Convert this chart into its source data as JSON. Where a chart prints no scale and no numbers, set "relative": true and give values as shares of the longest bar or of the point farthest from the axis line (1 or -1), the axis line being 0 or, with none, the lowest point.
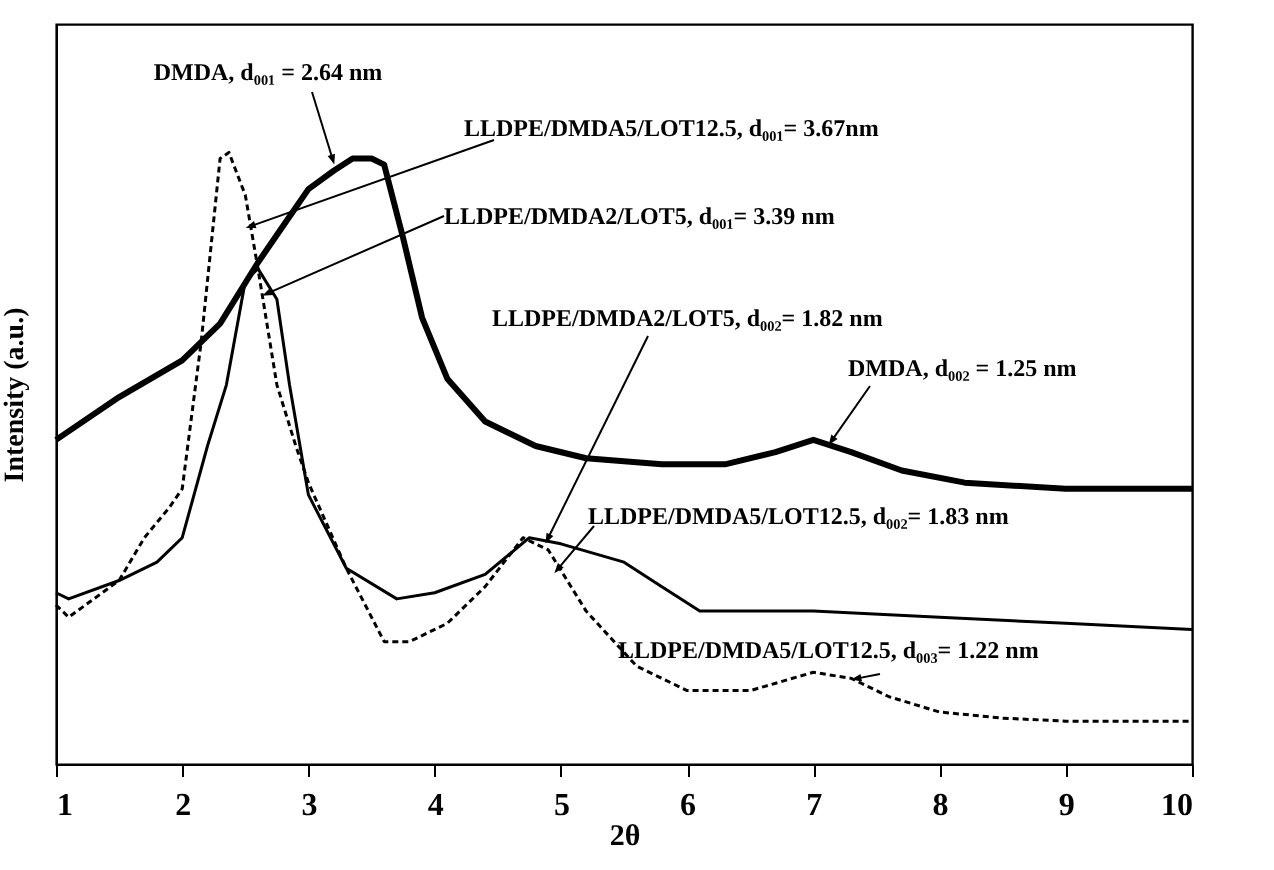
{
  "chart_data": {
    "type": "line",
    "relative": true,
    "xlabel": "2θ",
    "ylabel": "Intensity (a.u.)",
    "xlim": [
      1,
      10
    ],
    "xticks": [
      1,
      2,
      3,
      4,
      5,
      6,
      7,
      8,
      9,
      10
    ],
    "grid": false,
    "marker": "none",
    "series": [
      {
        "color": "#000000",
        "line_style": "solid",
        "x": [
          1,
          1.5,
          2,
          2.3,
          2.6,
          2.8,
          3.0,
          3.2,
          3.35,
          3.5,
          3.6,
          3.75,
          3.9,
          4.1,
          4.4,
          4.8,
          5.2,
          5.8,
          6.3,
          6.7,
          7.0,
          7.3,
          7.7,
          8.2,
          9,
          10
        ],
        "values": [
          0.53,
          0.6,
          0.66,
          0.72,
          0.82,
          0.88,
          0.94,
          0.97,
          0.99,
          0.99,
          0.98,
          0.86,
          0.73,
          0.63,
          0.56,
          0.52,
          0.5,
          0.49,
          0.49,
          0.51,
          0.53,
          0.51,
          0.48,
          0.46,
          0.45,
          0.45
        ]
      },
      {
        "color": "#000000",
        "line_style": "solid",
        "x": [
          1,
          1.1,
          1.5,
          1.8,
          2.0,
          2.2,
          2.35,
          2.5,
          2.6,
          2.75,
          2.85,
          3.0,
          3.3,
          3.7,
          4.0,
          4.4,
          4.75,
          5.0,
          5.5,
          5.8,
          6.1,
          7,
          8,
          9,
          10
        ],
        "values": [
          0.28,
          0.27,
          0.3,
          0.33,
          0.37,
          0.52,
          0.62,
          0.79,
          0.81,
          0.76,
          0.62,
          0.44,
          0.32,
          0.27,
          0.28,
          0.31,
          0.37,
          0.36,
          0.33,
          0.29,
          0.25,
          0.25,
          0.24,
          0.23,
          0.22
        ]
      },
      {
        "color": "#000000",
        "line_style": "dashed",
        "x": [
          1,
          1.1,
          1.5,
          1.7,
          1.9,
          2.0,
          2.15,
          2.3,
          2.37,
          2.5,
          2.6,
          2.75,
          2.9,
          3.0,
          3.3,
          3.6,
          3.8,
          4.1,
          4.4,
          4.7,
          4.9,
          5.2,
          5.6,
          6.0,
          6.5,
          7.0,
          7.3,
          7.6,
          8,
          8.5,
          9,
          10
        ],
        "values": [
          0.26,
          0.24,
          0.3,
          0.37,
          0.42,
          0.45,
          0.69,
          0.99,
          1.0,
          0.93,
          0.81,
          0.62,
          0.52,
          0.46,
          0.32,
          0.2,
          0.2,
          0.23,
          0.29,
          0.37,
          0.35,
          0.25,
          0.16,
          0.12,
          0.12,
          0.15,
          0.14,
          0.11,
          0.085,
          0.075,
          0.07,
          0.07
        ]
      }
    ],
    "annotations": [
      {
        "text": "DMDA, d₀₀₁ = 2.64 nm",
        "x": 3.19,
        "y": 0.99
      },
      {
        "text": "LLDPE/DMDA5/LOT12.5, d₀₀₁= 3.67nm",
        "x": 2.55,
        "y": 0.88
      },
      {
        "text": "LLDPE/DMDA2/LOT5, d₀₀₁= 3.39 nm",
        "x": 2.68,
        "y": 0.77
      },
      {
        "text": "LLDPE/DMDA2/LOT5, d₀₀₂= 1.82 nm",
        "x": 4.9,
        "y": 0.37
      },
      {
        "text": "DMDA, d₀₀₂ = 1.25 nm",
        "x": 7.15,
        "y": 0.53
      },
      {
        "text": "LLDPE/DMDA5/LOT12.5, d₀₀₂=  1.83 nm",
        "x": 4.98,
        "y": 0.32
      },
      {
        "text": "LLDPE/DMDA5/LOT12.5, d₀₀₃= 1.22 nm",
        "x": 7.35,
        "y": 0.14
      }
    ]
  }
}
